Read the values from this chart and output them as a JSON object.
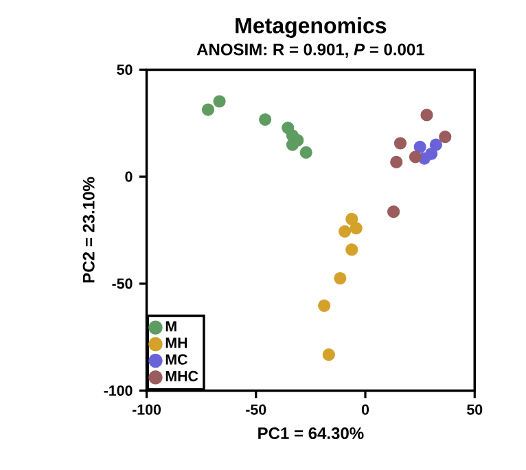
{
  "chart_data": {
    "type": "scatter",
    "title": "Metagenomics",
    "subtitle": "ANOSIM: R = 0.901, *P* = 0.001",
    "xlabel": "PC1 =  64.30%",
    "ylabel": "PC2 = 23.10%",
    "xlim": [
      -100,
      50
    ],
    "ylim": [
      -100,
      50
    ],
    "xticks": [
      -100,
      -50,
      0,
      50
    ],
    "yticks": [
      -100,
      -50,
      0,
      50
    ],
    "grid": false,
    "legend": "bottom left",
    "marker": "circle",
    "series": [
      {
        "name": "M",
        "color": "#5e9c62",
        "x": [
          -71.9,
          -66.7,
          -45.8,
          -35.4,
          -33.3,
          -33.3,
          -27.1,
          -31.0
        ],
        "values": [
          31.3,
          35.2,
          26.7,
          22.8,
          19.2,
          14.9,
          11.3,
          17.0
        ]
      },
      {
        "name": "MH",
        "color": "#d4a12a",
        "x": [
          -6.2,
          -9.4,
          -4.2,
          -6.2,
          -11.5,
          -18.8,
          -16.7
        ],
        "values": [
          -19.8,
          -25.6,
          -24.1,
          -34.1,
          -47.5,
          -60.3,
          -83.2
        ]
      },
      {
        "name": "MC",
        "color": "#6a62d8",
        "x": [
          25.0,
          29.2,
          32.3,
          27.0,
          30.2
        ],
        "values": [
          13.9,
          null,
          14.9,
          8.5,
          10.7
        ]
      },
      {
        "name": "MHC",
        "color": "#9a5c5c",
        "x": [
          28.1,
          16.0,
          14.2,
          12.9,
          36.5,
          22.9
        ],
        "values": [
          28.8,
          15.6,
          6.8,
          -16.4,
          18.6,
          9.2
        ]
      }
    ]
  }
}
